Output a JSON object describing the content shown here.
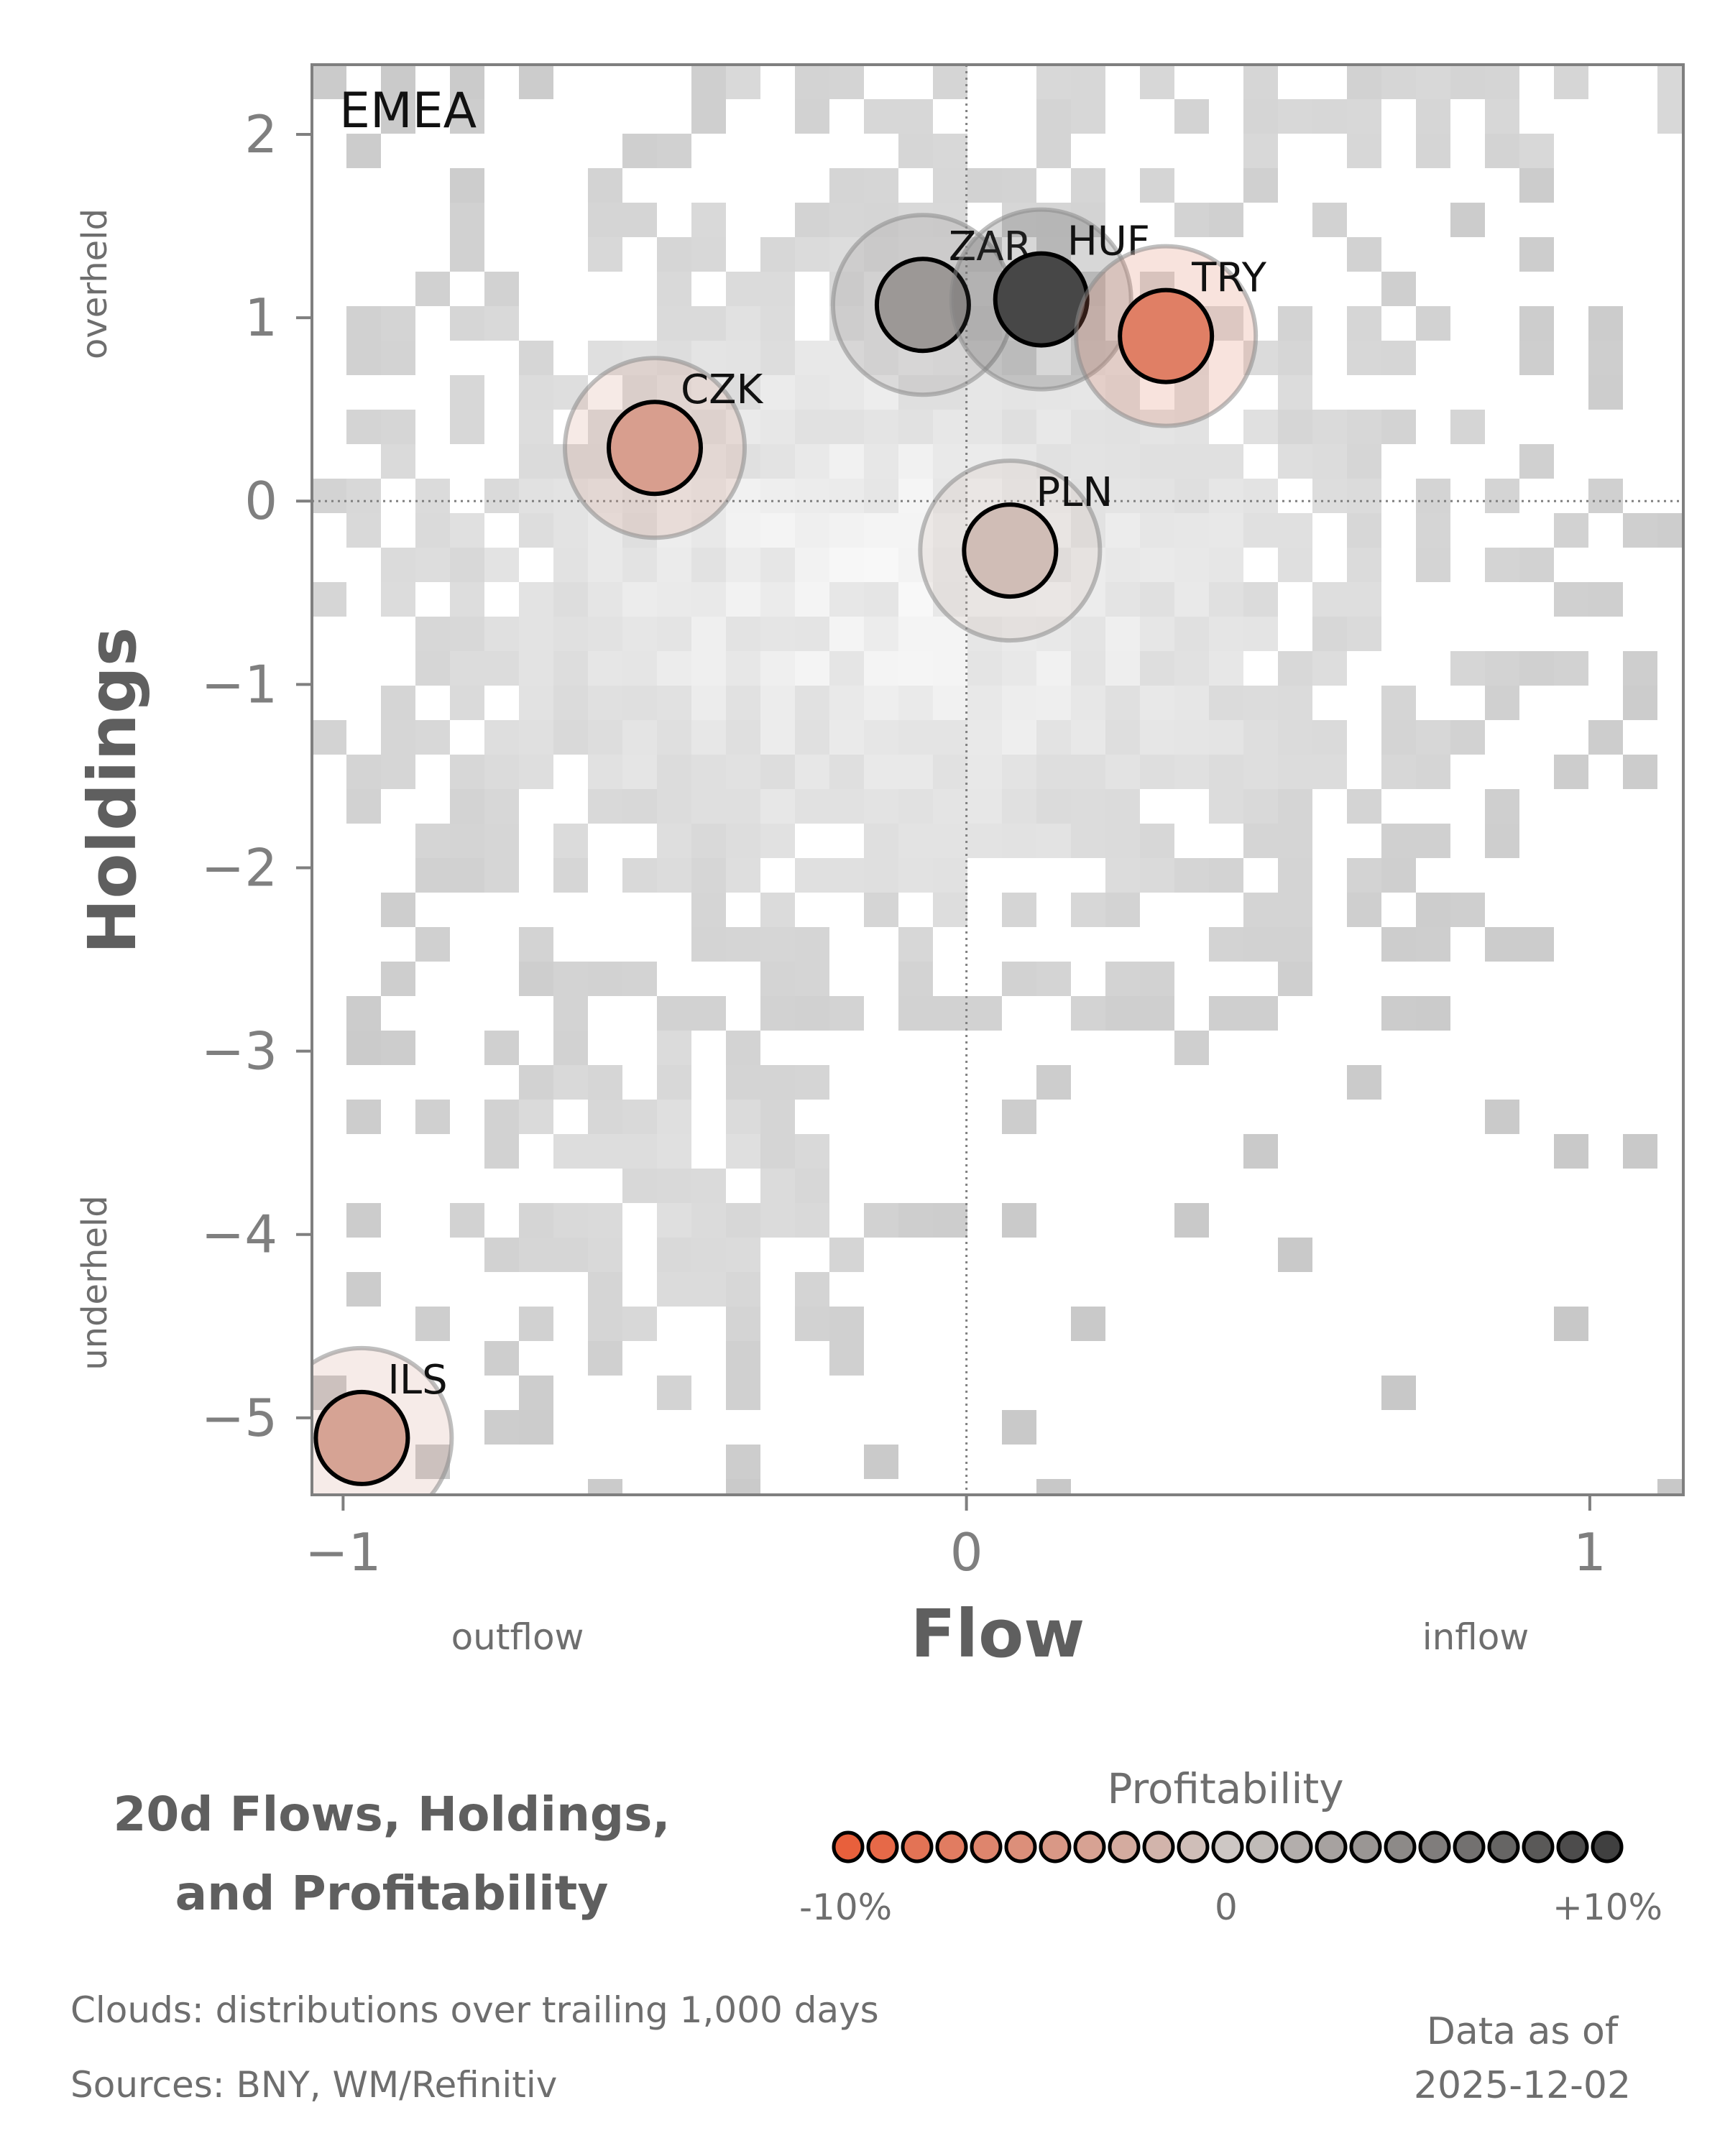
{
  "chart_data": {
    "type": "scatter",
    "panel_label": "EMEA",
    "xlabel": "Flow",
    "ylabel": "Holdings",
    "x_low_label": "outflow",
    "x_high_label": "inflow",
    "y_high_label": "overheld",
    "y_low_label": "underheld",
    "xlim": [
      -1.05,
      1.15
    ],
    "ylim": [
      -5.42,
      2.38
    ],
    "xticks": [
      -1,
      0,
      1
    ],
    "xtick_labels": [
      "−1",
      "0",
      "1"
    ],
    "yticks": [
      2,
      1,
      0,
      -1,
      -2,
      -3,
      -4,
      -5
    ],
    "ytick_labels": [
      "2",
      "1",
      "0",
      "−1",
      "−2",
      "−3",
      "−4",
      "−5"
    ],
    "reference_lines": {
      "x": 0,
      "y": 0
    },
    "background": "2D histogram cloud of trailing distributions (grey)",
    "points": [
      {
        "label": "ZAR",
        "x": -0.07,
        "y": 1.07,
        "profitability": 3.5
      },
      {
        "label": "HUF",
        "x": 0.12,
        "y": 1.1,
        "profitability": 9.5
      },
      {
        "label": "TRY",
        "x": 0.32,
        "y": 0.9,
        "profitability": -7.0
      },
      {
        "label": "CZK",
        "x": -0.5,
        "y": 0.29,
        "profitability": -4.0
      },
      {
        "label": "PLN",
        "x": 0.07,
        "y": -0.27,
        "profitability": -1.0
      },
      {
        "label": "ILS",
        "x": -0.97,
        "y": -5.11,
        "profitability": -3.5
      }
    ]
  },
  "title_line1": "20d Flows, Holdings,",
  "title_line2": "and Profitability",
  "legend": {
    "title": "Profitability",
    "min_label": "-10%",
    "mid_label": "0",
    "max_label": "+10%",
    "color_low": "#e8603c",
    "color_mid": "#cdc7c4",
    "color_high": "#404040",
    "swatch_count": 23
  },
  "footer": {
    "clouds": "Clouds:  distributions over trailing 1,000 days",
    "sources": "Sources:  BNY, WM/Refinitiv",
    "asof_line1": "Data as of",
    "asof_line2": "2025-12-02"
  }
}
